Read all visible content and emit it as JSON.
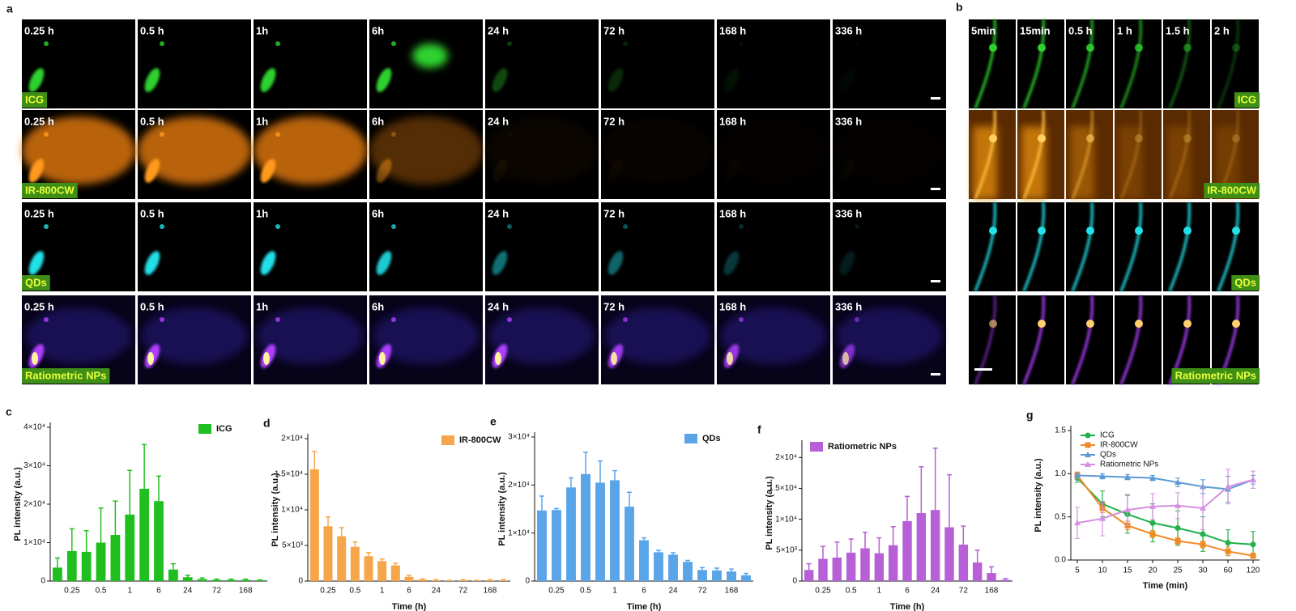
{
  "panels": {
    "a": {
      "letter": "a",
      "rows": [
        {
          "label": "ICG",
          "times": [
            "0.25 h",
            "0.5 h",
            "1h",
            "6h",
            "24 h",
            "72 h",
            "168 h",
            "336 h"
          ]
        },
        {
          "label": "IR-800CW",
          "times": [
            "0.25 h",
            "0.5 h",
            "1h",
            "6h",
            "24 h",
            "72 h",
            "168 h",
            "336 h"
          ]
        },
        {
          "label": "QDs",
          "times": [
            "0.25 h",
            "0.5 h",
            "1h",
            "6h",
            "24 h",
            "72 h",
            "168 h",
            "336 h"
          ]
        },
        {
          "label": "Ratiometric NPs",
          "times": [
            "0.25 h",
            "0.5 h",
            "1h",
            "6h",
            "24 h",
            "72 h",
            "168 h",
            "336 h"
          ]
        }
      ]
    },
    "b": {
      "letter": "b",
      "times": [
        "5min",
        "15min",
        "0.5 h",
        "1 h",
        "1.5 h",
        "2 h"
      ],
      "rows": [
        {
          "label": "ICG"
        },
        {
          "label": "IR-800CW"
        },
        {
          "label": "QDs"
        },
        {
          "label": "Ratiometric NPs"
        }
      ]
    }
  },
  "chart_data": [
    {
      "type": "bar",
      "panel": "c",
      "ylabel": "PL intensity (a.u.)",
      "legend": "upper right",
      "categories": [
        null,
        "0.25",
        null,
        "0.5",
        null,
        "1",
        null,
        "6",
        null,
        "24",
        null,
        "72",
        null,
        "168",
        null
      ],
      "ylim": [
        0,
        40000
      ],
      "yticks": [
        0,
        {
          "value": 10000,
          "label": "1×10⁴"
        },
        {
          "value": 20000,
          "label": "2×10⁴"
        },
        {
          "value": 30000,
          "label": "3×10⁴"
        },
        {
          "value": 40000,
          "label": "4×10⁴"
        }
      ],
      "series": [
        {
          "name": "ICG",
          "color": "#1fbf1f",
          "values": [
            3500,
            7800,
            7600,
            10000,
            12000,
            17300,
            24000,
            20800,
            3000,
            1000,
            500,
            300,
            300,
            300,
            200
          ],
          "errors": [
            2500,
            5800,
            5500,
            9000,
            8800,
            11500,
            11500,
            6500,
            1500,
            500,
            300,
            200,
            200,
            200,
            100
          ]
        }
      ]
    },
    {
      "type": "bar",
      "panel": "d",
      "ylabel": "PL intensity (a.u.)",
      "xlabel": "Time (h)",
      "legend": "upper right",
      "categories": [
        null,
        "0.25",
        null,
        "0.5",
        null,
        "1",
        null,
        "6",
        null,
        "24",
        null,
        "72",
        null,
        "168",
        null
      ],
      "ylim": [
        0,
        20000
      ],
      "yticks": [
        0,
        {
          "value": 5000,
          "label": "5×10³"
        },
        {
          "value": 10000,
          "label": "1×10⁴"
        },
        {
          "value": 15000,
          "label": "1.5×10⁴"
        },
        {
          "value": 20000,
          "label": "2×10⁴"
        }
      ],
      "series": [
        {
          "name": "IR-800CW",
          "color": "#f5a64a",
          "values": [
            15700,
            7700,
            6300,
            4800,
            3500,
            2800,
            2200,
            600,
            200,
            100,
            50,
            100,
            50,
            100,
            100
          ],
          "errors": [
            2500,
            1300,
            1200,
            700,
            500,
            300,
            300,
            200,
            100,
            100,
            50,
            100,
            50,
            100,
            100
          ]
        }
      ]
    },
    {
      "type": "bar",
      "panel": "e",
      "ylabel": "PL intensity (a.u.)",
      "xlabel": "Time (h)",
      "legend": "upper right",
      "categories": [
        null,
        "0.25",
        null,
        "0.5",
        null,
        "1",
        null,
        "6",
        null,
        "24",
        null,
        "72",
        null,
        "168",
        null
      ],
      "ylim": [
        0,
        30000
      ],
      "yticks": [
        0,
        {
          "value": 10000,
          "label": "1×10⁴"
        },
        {
          "value": 20000,
          "label": "2×10⁴"
        },
        {
          "value": 30000,
          "label": "3×10⁴"
        }
      ],
      "series": [
        {
          "name": "QDs",
          "color": "#5aa5e8",
          "values": [
            14700,
            14800,
            19500,
            22300,
            20500,
            21000,
            15500,
            8500,
            6000,
            5500,
            4000,
            2300,
            2200,
            2000,
            1200
          ],
          "errors": [
            3000,
            300,
            2000,
            4500,
            4500,
            2000,
            3000,
            500,
            400,
            400,
            300,
            500,
            500,
            500,
            400
          ]
        }
      ]
    },
    {
      "type": "bar",
      "panel": "f",
      "ylabel": "PL intensity (a.u.)",
      "xlabel": "Time (h)",
      "legend": "upper left",
      "categories": [
        null,
        "0.25",
        null,
        "0.5",
        null,
        "1",
        null,
        "6",
        null,
        "24",
        null,
        "72",
        null,
        "168",
        null
      ],
      "ylim": [
        0,
        22000
      ],
      "yticks": [
        0,
        {
          "value": 5000,
          "label": "5×10³"
        },
        {
          "value": 10000,
          "label": "1×10⁴"
        },
        {
          "value": 15000,
          "label": "1.5×10⁴"
        },
        {
          "value": 20000,
          "label": "2×10⁴"
        }
      ],
      "series": [
        {
          "name": "Ratiometric  NPs",
          "color": "#b75fd6",
          "values": [
            1800,
            3600,
            3800,
            4600,
            5300,
            4500,
            5800,
            9700,
            11000,
            11500,
            8700,
            5900,
            3000,
            1300,
            200
          ],
          "errors": [
            1000,
            2000,
            2500,
            2200,
            2600,
            2500,
            3000,
            4000,
            7500,
            10000,
            8500,
            3000,
            2000,
            1000,
            200
          ]
        }
      ]
    },
    {
      "type": "line",
      "panel": "g",
      "ylabel": "PL intensity (a.u.)",
      "xlabel": "Time (min)",
      "legend": "upper left",
      "categories": [
        "5",
        "10",
        "15",
        "20",
        "25",
        "30",
        "60",
        "120"
      ],
      "ylim": [
        0,
        1.5
      ],
      "yticks": [
        {
          "value": 0,
          "label": "0.0"
        },
        {
          "value": 0.5,
          "label": "0.5"
        },
        {
          "value": 1,
          "label": "1.0"
        },
        {
          "value": 1.5,
          "label": "1.5"
        }
      ],
      "series": [
        {
          "name": "ICG",
          "color": "#22b04a",
          "marker": "circle",
          "values": [
            0.95,
            0.65,
            0.53,
            0.43,
            0.37,
            0.3,
            0.2,
            0.18
          ],
          "errors": [
            0.05,
            0.15,
            0.22,
            0.22,
            0.2,
            0.2,
            0.15,
            0.15
          ]
        },
        {
          "name": "IR-800CW",
          "color": "#f08a24",
          "marker": "square",
          "values": [
            0.98,
            0.6,
            0.4,
            0.3,
            0.22,
            0.18,
            0.1,
            0.05
          ],
          "errors": [
            0.04,
            0.05,
            0.05,
            0.04,
            0.04,
            0.04,
            0.05,
            0.03
          ]
        },
        {
          "name": "QDs",
          "color": "#5b9bd5",
          "marker": "triangle",
          "values": [
            0.98,
            0.97,
            0.96,
            0.95,
            0.9,
            0.85,
            0.82,
            0.93
          ],
          "errors": [
            0.03,
            0.03,
            0.03,
            0.03,
            0.05,
            0.08,
            0.15,
            0.05
          ]
        },
        {
          "name": "Ratiometric NPs",
          "color": "#d58fe0",
          "marker": "triangle",
          "values": [
            0.43,
            0.48,
            0.58,
            0.62,
            0.63,
            0.6,
            0.85,
            0.93
          ],
          "errors": [
            0.18,
            0.2,
            0.18,
            0.15,
            0.15,
            0.25,
            0.2,
            0.1
          ]
        }
      ]
    }
  ]
}
